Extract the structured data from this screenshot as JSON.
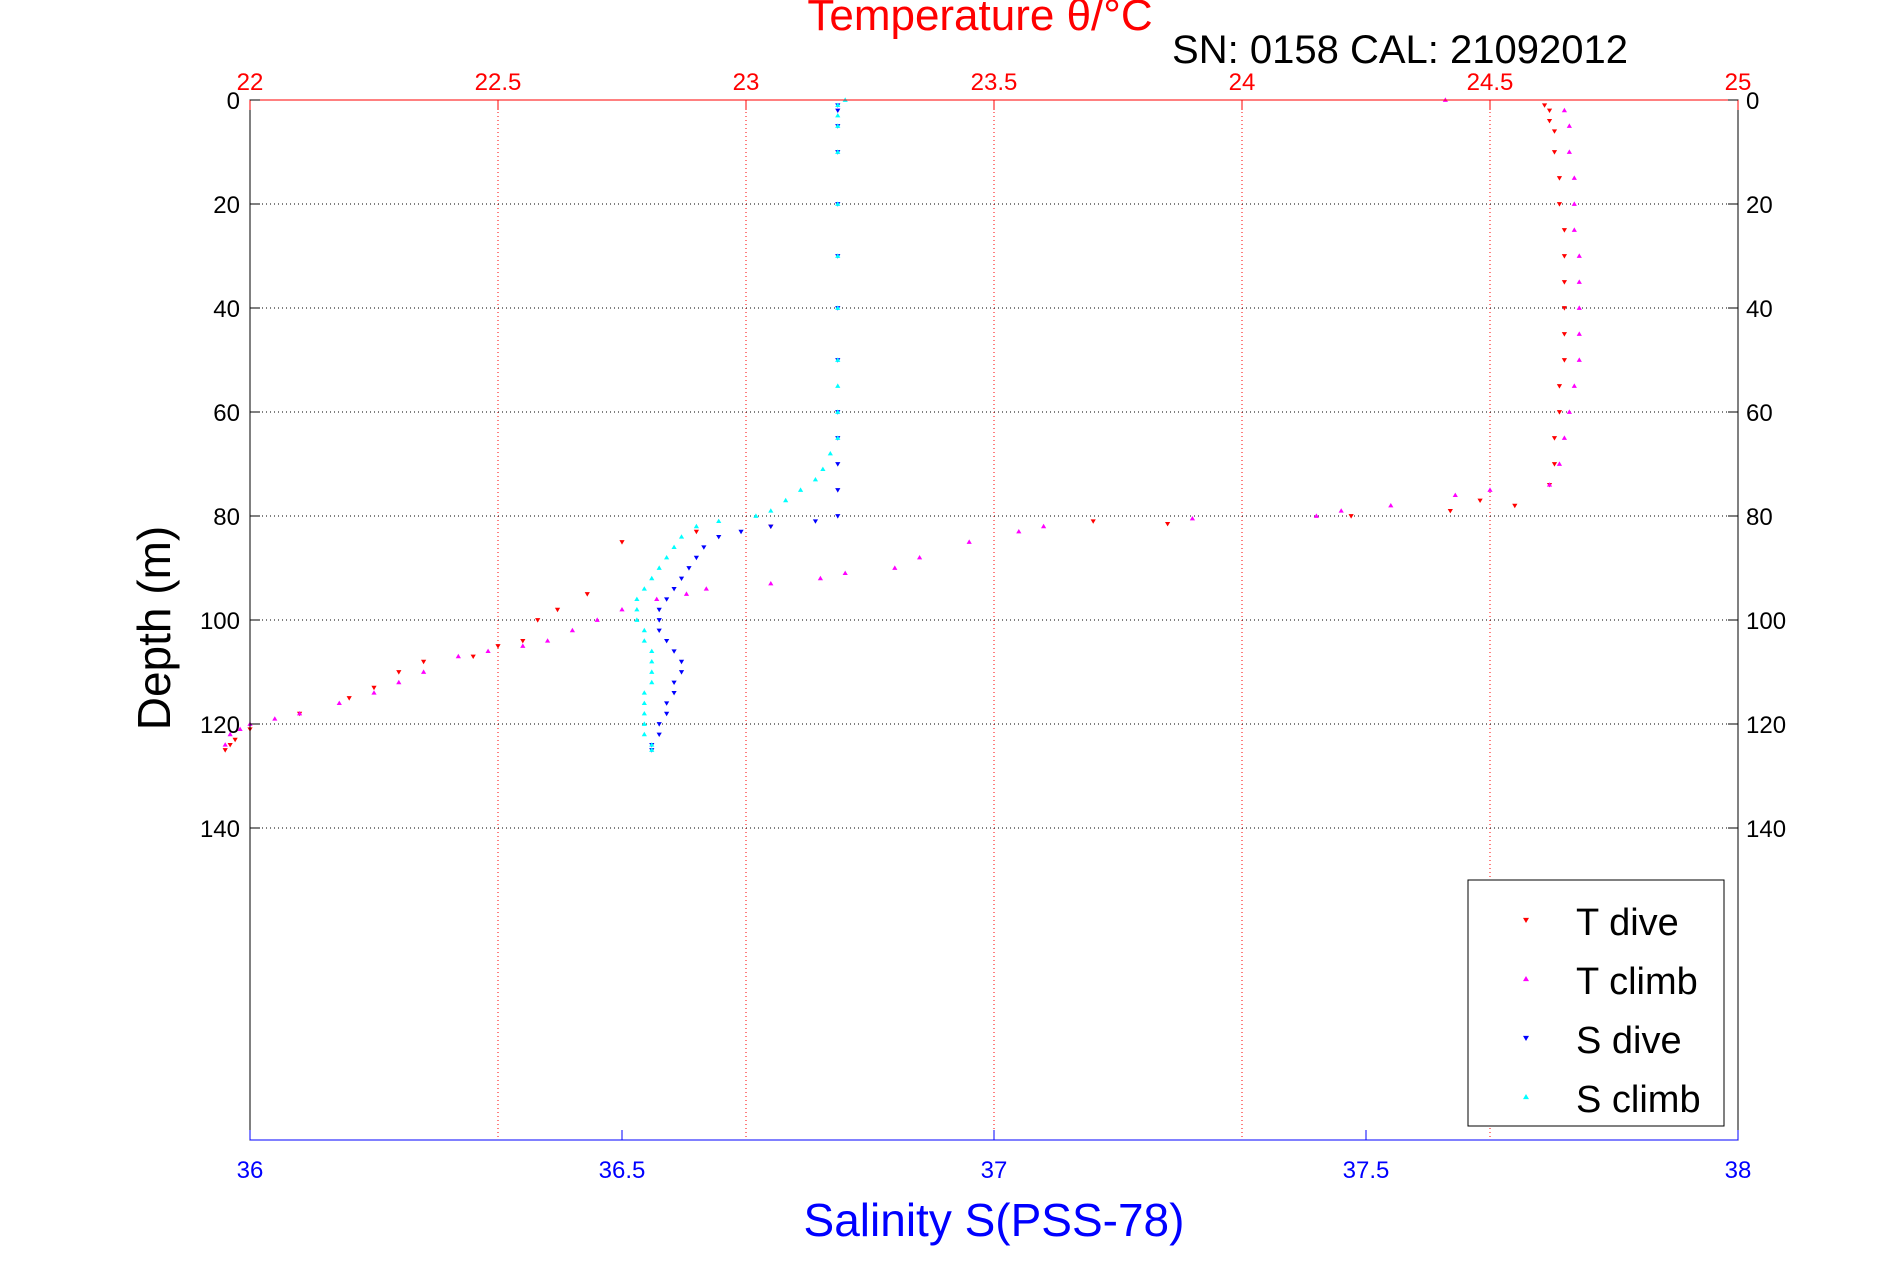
{
  "chart_data": {
    "type": "scatter",
    "title": "Temperature θ/°C",
    "subtitle": "SN: 0158  CAL: 21092012",
    "ylabel": "Depth (m)",
    "xlabel": "Salinity S(PSS-78)",
    "ylim": [
      0,
      200
    ],
    "y_reversed": true,
    "yticks": [
      0,
      20,
      40,
      60,
      80,
      100,
      120,
      140
    ],
    "temperature_axis": {
      "range": [
        22,
        25
      ],
      "ticks": [
        "22",
        "22.5",
        "23",
        "23.5",
        "24",
        "24.5",
        "25"
      ],
      "color": "#ff0000",
      "position": "top"
    },
    "salinity_axis": {
      "range": [
        36,
        38
      ],
      "ticks": [
        "36",
        "36.5",
        "37",
        "37.5",
        "38"
      ],
      "color": "#0000ff",
      "position": "bottom"
    },
    "grid": true,
    "legend": {
      "position": "bottom-right",
      "entries": [
        "T dive",
        "T climb",
        "S dive",
        "S climb"
      ]
    },
    "series": [
      {
        "name": "T dive",
        "axis": "temperature",
        "color": "#ff0000",
        "marker": "triangle-down",
        "points": [
          [
            24.61,
            1
          ],
          [
            24.62,
            2
          ],
          [
            24.62,
            4
          ],
          [
            24.63,
            6
          ],
          [
            24.63,
            10
          ],
          [
            24.64,
            15
          ],
          [
            24.64,
            20
          ],
          [
            24.65,
            25
          ],
          [
            24.65,
            30
          ],
          [
            24.65,
            35
          ],
          [
            24.65,
            40
          ],
          [
            24.65,
            45
          ],
          [
            24.65,
            50
          ],
          [
            24.64,
            55
          ],
          [
            24.64,
            60
          ],
          [
            24.63,
            65
          ],
          [
            24.63,
            70
          ],
          [
            24.62,
            74
          ],
          [
            24.55,
            78
          ],
          [
            24.48,
            77
          ],
          [
            24.42,
            79
          ],
          [
            24.22,
            80
          ],
          [
            23.85,
            81.5
          ],
          [
            23.7,
            81
          ],
          [
            23.05,
            82
          ],
          [
            22.9,
            83
          ],
          [
            22.75,
            85
          ],
          [
            22.68,
            95
          ],
          [
            22.62,
            98
          ],
          [
            22.58,
            100
          ],
          [
            22.55,
            104
          ],
          [
            22.5,
            105
          ],
          [
            22.45,
            107
          ],
          [
            22.35,
            108
          ],
          [
            22.3,
            110
          ],
          [
            22.25,
            113
          ],
          [
            22.2,
            115
          ],
          [
            22.1,
            118
          ],
          [
            22.0,
            121
          ],
          [
            21.97,
            123
          ],
          [
            21.96,
            124
          ],
          [
            21.95,
            125
          ]
        ]
      },
      {
        "name": "T climb",
        "axis": "temperature",
        "color": "#ff00ff",
        "marker": "triangle-up",
        "points": [
          [
            24.65,
            2
          ],
          [
            24.66,
            5
          ],
          [
            24.66,
            10
          ],
          [
            24.67,
            15
          ],
          [
            24.67,
            20
          ],
          [
            24.67,
            25
          ],
          [
            24.68,
            30
          ],
          [
            24.68,
            35
          ],
          [
            24.68,
            40
          ],
          [
            24.68,
            45
          ],
          [
            24.68,
            50
          ],
          [
            24.67,
            55
          ],
          [
            24.66,
            60
          ],
          [
            24.65,
            65
          ],
          [
            24.64,
            70
          ],
          [
            24.62,
            74
          ],
          [
            24.41,
            0
          ],
          [
            24.5,
            75
          ],
          [
            24.43,
            76
          ],
          [
            24.3,
            78
          ],
          [
            24.2,
            79
          ],
          [
            24.15,
            80
          ],
          [
            23.9,
            80.5
          ],
          [
            23.6,
            82
          ],
          [
            23.55,
            83
          ],
          [
            23.45,
            85
          ],
          [
            23.35,
            88
          ],
          [
            23.3,
            90
          ],
          [
            23.2,
            91
          ],
          [
            23.15,
            92
          ],
          [
            23.05,
            93
          ],
          [
            22.92,
            94
          ],
          [
            22.88,
            95
          ],
          [
            22.82,
            96
          ],
          [
            22.75,
            98
          ],
          [
            22.7,
            100
          ],
          [
            22.65,
            102
          ],
          [
            22.6,
            104
          ],
          [
            22.55,
            105
          ],
          [
            22.48,
            106
          ],
          [
            22.42,
            107
          ],
          [
            22.35,
            110
          ],
          [
            22.3,
            112
          ],
          [
            22.25,
            114
          ],
          [
            22.18,
            116
          ],
          [
            22.1,
            118
          ],
          [
            22.05,
            119
          ],
          [
            22.0,
            120
          ],
          [
            21.98,
            121
          ],
          [
            21.96,
            122
          ],
          [
            21.95,
            124
          ]
        ]
      },
      {
        "name": "S dive",
        "axis": "salinity",
        "color": "#0000ff",
        "marker": "triangle-down",
        "points": [
          [
            36.79,
            1
          ],
          [
            36.79,
            2
          ],
          [
            36.79,
            5
          ],
          [
            36.79,
            10
          ],
          [
            36.79,
            20
          ],
          [
            36.79,
            30
          ],
          [
            36.79,
            40
          ],
          [
            36.79,
            50
          ],
          [
            36.79,
            60
          ],
          [
            36.79,
            65
          ],
          [
            36.79,
            70
          ],
          [
            36.79,
            75
          ],
          [
            36.79,
            80
          ],
          [
            36.76,
            81
          ],
          [
            36.7,
            82
          ],
          [
            36.66,
            83
          ],
          [
            36.63,
            84
          ],
          [
            36.61,
            86
          ],
          [
            36.6,
            88
          ],
          [
            36.59,
            90
          ],
          [
            36.58,
            92
          ],
          [
            36.57,
            94
          ],
          [
            36.56,
            96
          ],
          [
            36.55,
            98
          ],
          [
            36.55,
            100
          ],
          [
            36.55,
            102
          ],
          [
            36.56,
            104
          ],
          [
            36.57,
            106
          ],
          [
            36.58,
            108
          ],
          [
            36.58,
            110
          ],
          [
            36.57,
            112
          ],
          [
            36.57,
            114
          ],
          [
            36.56,
            116
          ],
          [
            36.56,
            118
          ],
          [
            36.55,
            120
          ],
          [
            36.55,
            122
          ],
          [
            36.54,
            124
          ],
          [
            36.54,
            125
          ]
        ]
      },
      {
        "name": "S climb",
        "axis": "salinity",
        "color": "#00ffff",
        "marker": "triangle-up",
        "points": [
          [
            36.8,
            0
          ],
          [
            36.79,
            1
          ],
          [
            36.79,
            3
          ],
          [
            36.79,
            5
          ],
          [
            36.79,
            10
          ],
          [
            36.79,
            20
          ],
          [
            36.79,
            30
          ],
          [
            36.79,
            40
          ],
          [
            36.79,
            50
          ],
          [
            36.79,
            55
          ],
          [
            36.79,
            60
          ],
          [
            36.79,
            65
          ],
          [
            36.78,
            68
          ],
          [
            36.77,
            71
          ],
          [
            36.76,
            73
          ],
          [
            36.74,
            75
          ],
          [
            36.72,
            77
          ],
          [
            36.7,
            79
          ],
          [
            36.68,
            80
          ],
          [
            36.63,
            81
          ],
          [
            36.6,
            82
          ],
          [
            36.58,
            84
          ],
          [
            36.57,
            86
          ],
          [
            36.56,
            88
          ],
          [
            36.55,
            90
          ],
          [
            36.54,
            92
          ],
          [
            36.53,
            94
          ],
          [
            36.52,
            96
          ],
          [
            36.52,
            98
          ],
          [
            36.52,
            100
          ],
          [
            36.53,
            102
          ],
          [
            36.53,
            104
          ],
          [
            36.54,
            106
          ],
          [
            36.54,
            108
          ],
          [
            36.54,
            110
          ],
          [
            36.54,
            112
          ],
          [
            36.53,
            114
          ],
          [
            36.53,
            116
          ],
          [
            36.53,
            118
          ],
          [
            36.53,
            120
          ],
          [
            36.53,
            122
          ],
          [
            36.54,
            124
          ],
          [
            36.54,
            125
          ]
        ]
      }
    ]
  }
}
